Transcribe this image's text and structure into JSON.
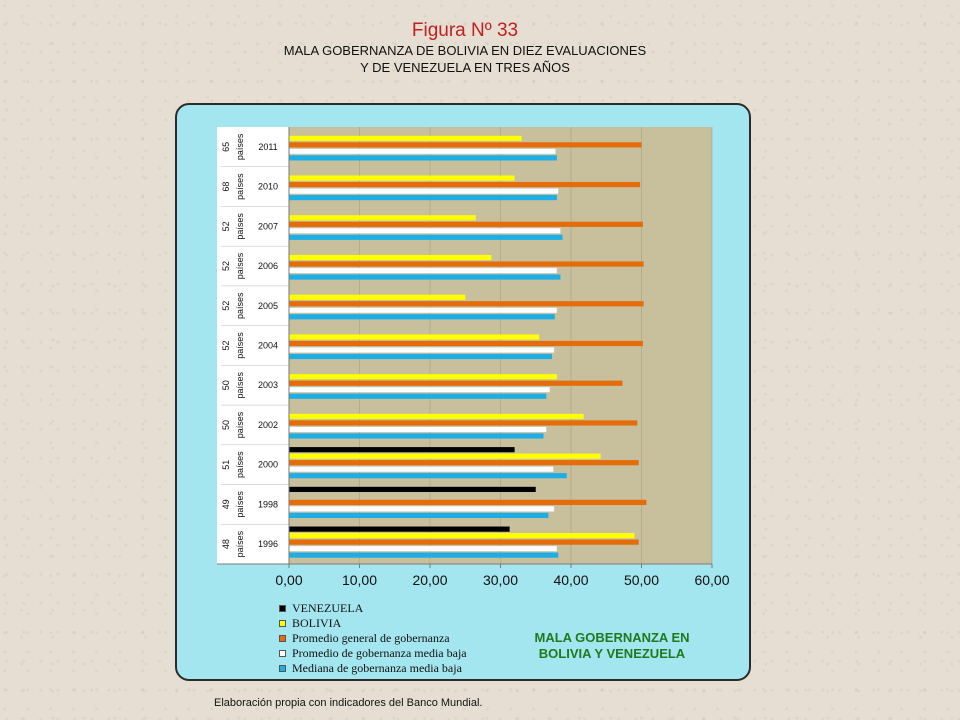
{
  "header": {
    "figure_title": "Figura Nº 33",
    "subtitle_line1": "MALA GOBERNANZA DE BOLIVIA EN DIEZ EVALUACIONES",
    "subtitle_line2": "Y DE VENEZUELA EN TRES AÑOS"
  },
  "footnote": "Elaboración propia con indicadores del Banco Mundial.",
  "badge": {
    "line1": "MALA GOBERNANZA EN",
    "line2": "BOLIVIA Y VENEZUELA"
  },
  "chart_data": {
    "type": "bar",
    "orientation": "horizontal",
    "categories": [
      "2011",
      "2010",
      "2007",
      "2006",
      "2005",
      "2004",
      "2003",
      "2002",
      "2000",
      "1998",
      "1996"
    ],
    "country_counts": [
      "65",
      "68",
      "52",
      "52",
      "52",
      "52",
      "50",
      "50",
      "51",
      "49",
      "48"
    ],
    "count_suffix": "países",
    "xlim": [
      0,
      60
    ],
    "xticks": [
      "0,00",
      "10,00",
      "20,00",
      "30,00",
      "40,00",
      "50,00",
      "60,00"
    ],
    "plot_background": "#c8bf9c",
    "series": [
      {
        "name": "VENEZUELA",
        "color": "#000000",
        "values": [
          null,
          null,
          null,
          null,
          null,
          null,
          null,
          null,
          32.0,
          35.0,
          31.3
        ]
      },
      {
        "name": "BOLIVIA",
        "color": "#ffff00",
        "values": [
          33.0,
          32.0,
          26.5,
          28.7,
          25.0,
          35.5,
          38.0,
          41.8,
          44.2,
          null,
          49.0
        ]
      },
      {
        "name": "Promedio general de gobernanza",
        "color": "#e46c0a",
        "values": [
          50.0,
          49.8,
          50.2,
          50.3,
          50.3,
          50.2,
          47.3,
          49.4,
          49.6,
          50.7,
          49.6
        ]
      },
      {
        "name": "Promedio de gobernanza media baja",
        "color": "#ffffff",
        "values": [
          37.8,
          38.2,
          38.5,
          38.0,
          38.0,
          37.6,
          37.0,
          36.5,
          37.5,
          37.6,
          38.0
        ]
      },
      {
        "name": "Mediana de gobernanza media baja",
        "color": "#1eaee6",
        "values": [
          38.0,
          38.0,
          38.8,
          38.5,
          37.7,
          37.3,
          36.5,
          36.1,
          39.4,
          36.8,
          38.2
        ]
      }
    ]
  }
}
